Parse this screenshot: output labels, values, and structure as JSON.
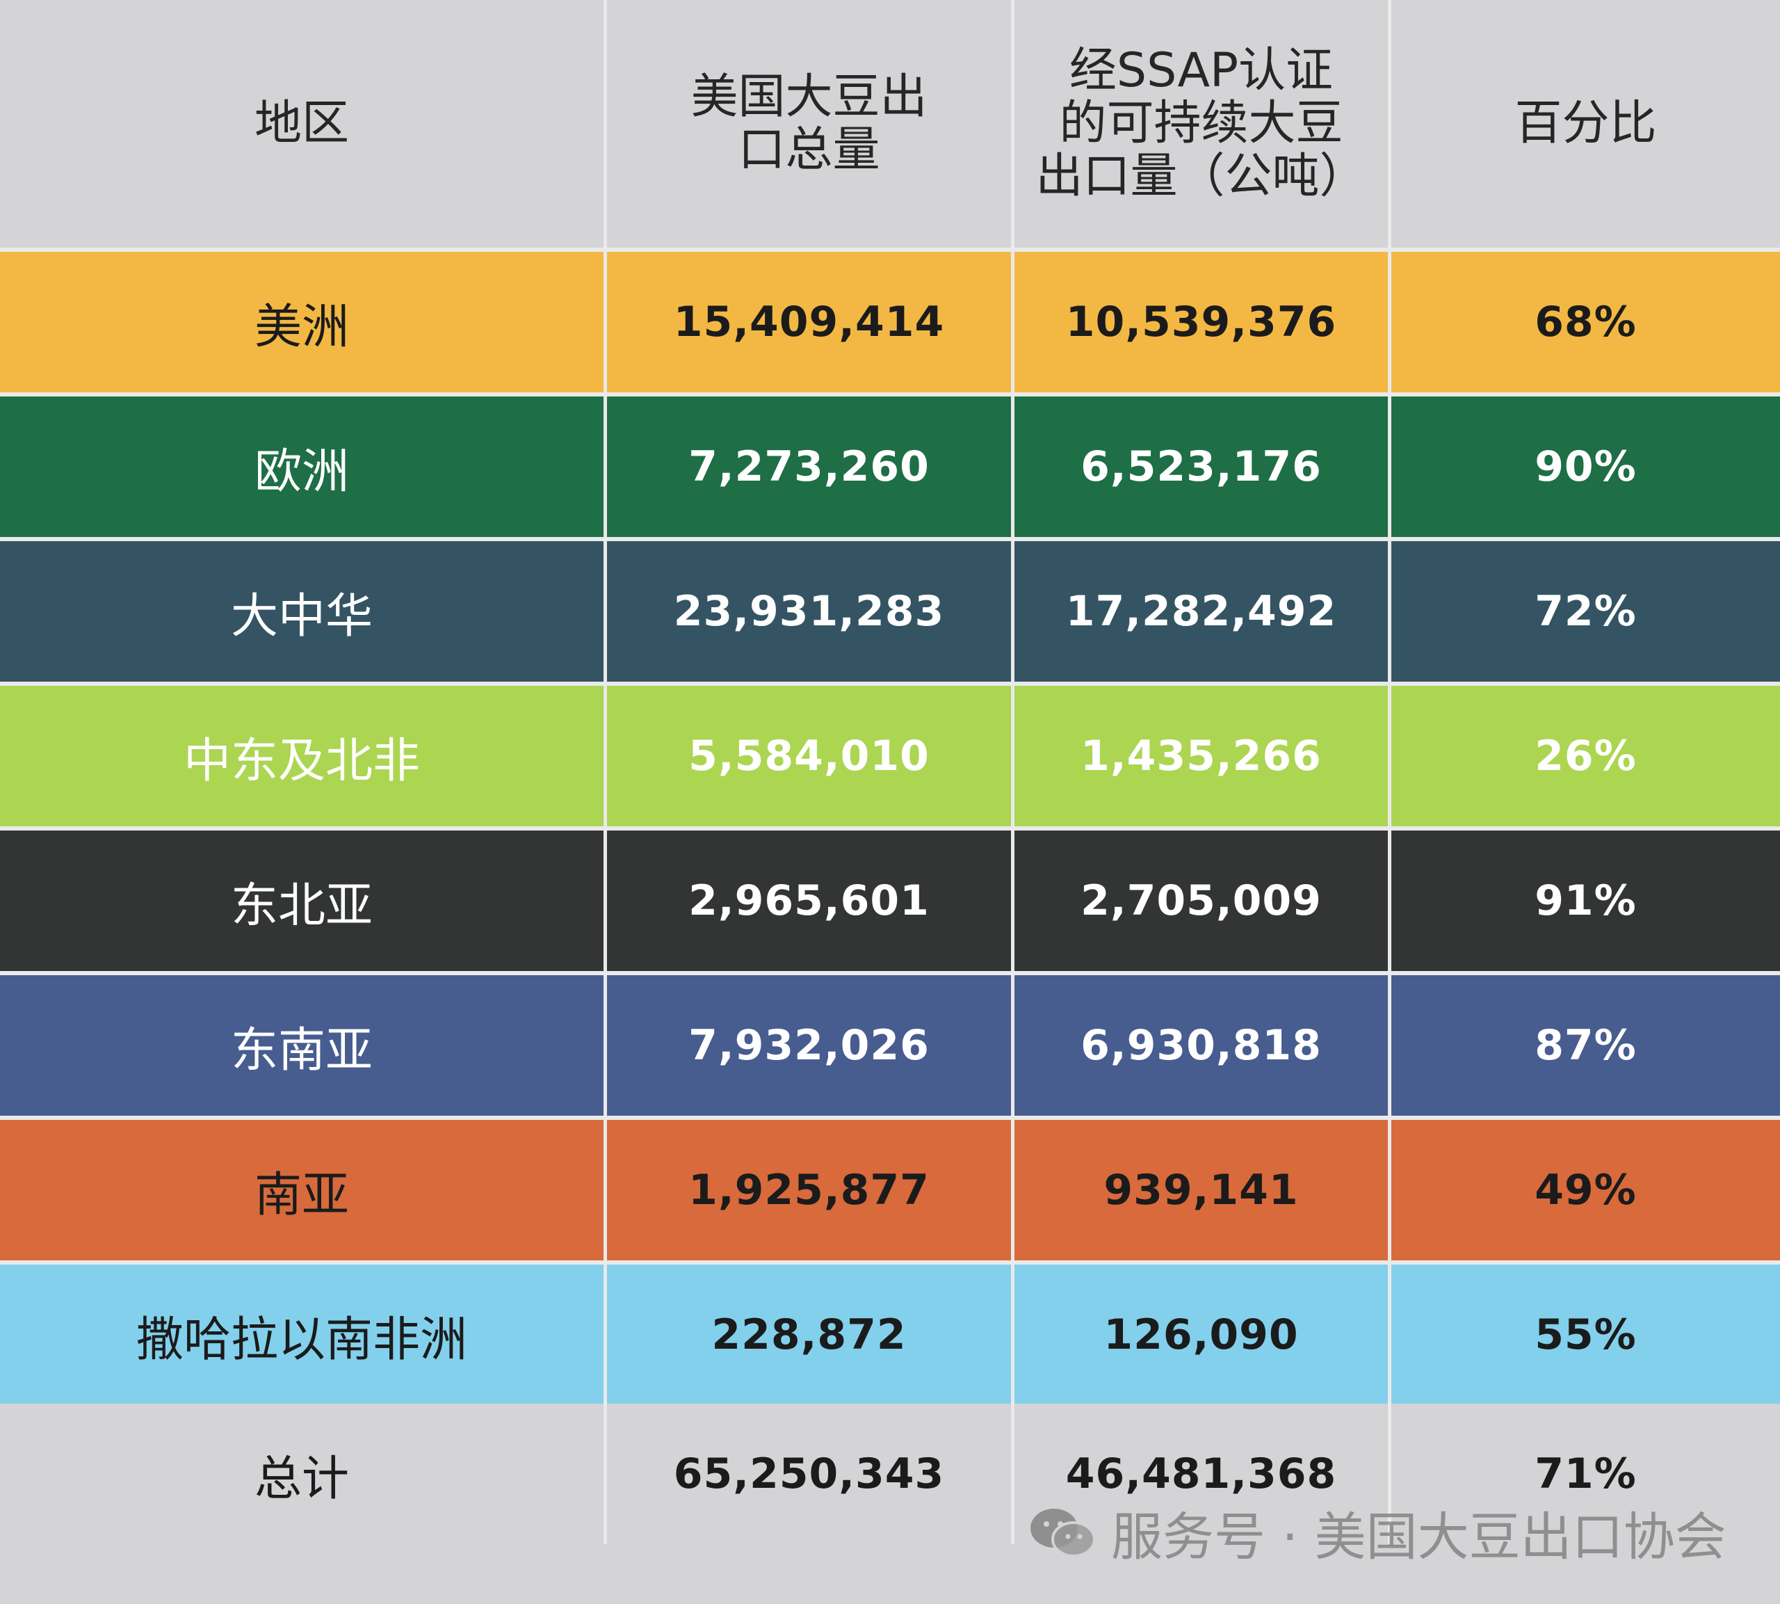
{
  "header": {
    "region": "地区",
    "total_exports_line1": "美国大豆出",
    "total_exports_line2": "口总量",
    "ssap_line1": "经SSAP认证",
    "ssap_line2": "的可持续大豆",
    "ssap_line3": "出口量（公吨）",
    "percent": "百分比"
  },
  "rows": [
    {
      "region": "美洲",
      "total": "15,409,414",
      "ssap": "10,539,376",
      "pct": "68%",
      "bg": "#f3b843",
      "fg": "#1b1b1b"
    },
    {
      "region": "欧洲",
      "total": "7,273,260",
      "ssap": "6,523,176",
      "pct": "90%",
      "bg": "#1e6e46",
      "fg": "#ffffff"
    },
    {
      "region": "大中华",
      "total": "23,931,283",
      "ssap": "17,282,492",
      "pct": "72%",
      "bg": "#345463",
      "fg": "#ffffff"
    },
    {
      "region": "中东及北非",
      "total": "5,584,010",
      "ssap": "1,435,266",
      "pct": "26%",
      "bg": "#acd552",
      "fg": "#ffffff"
    },
    {
      "region": "东北亚",
      "total": "2,965,601",
      "ssap": "2,705,009",
      "pct": "91%",
      "bg": "#333535",
      "fg": "#ffffff"
    },
    {
      "region": "东南亚",
      "total": "7,932,026",
      "ssap": "6,930,818",
      "pct": "87%",
      "bg": "#475d90",
      "fg": "#ffffff"
    },
    {
      "region": "南亚",
      "total": "1,925,877",
      "ssap": "939,141",
      "pct": "49%",
      "bg": "#d86a3c",
      "fg": "#1b1b1b"
    },
    {
      "region": "撒哈拉以南非洲",
      "total": "228,872",
      "ssap": "126,090",
      "pct": "55%",
      "bg": "#82d0ec",
      "fg": "#1b1b1b"
    }
  ],
  "total": {
    "region": "总计",
    "total": "65,250,343",
    "ssap": "46,481,368",
    "pct": "71%"
  },
  "watermark": {
    "text": "服务号 · 美国大豆出口协会",
    "icon": "wechat-icon"
  }
}
